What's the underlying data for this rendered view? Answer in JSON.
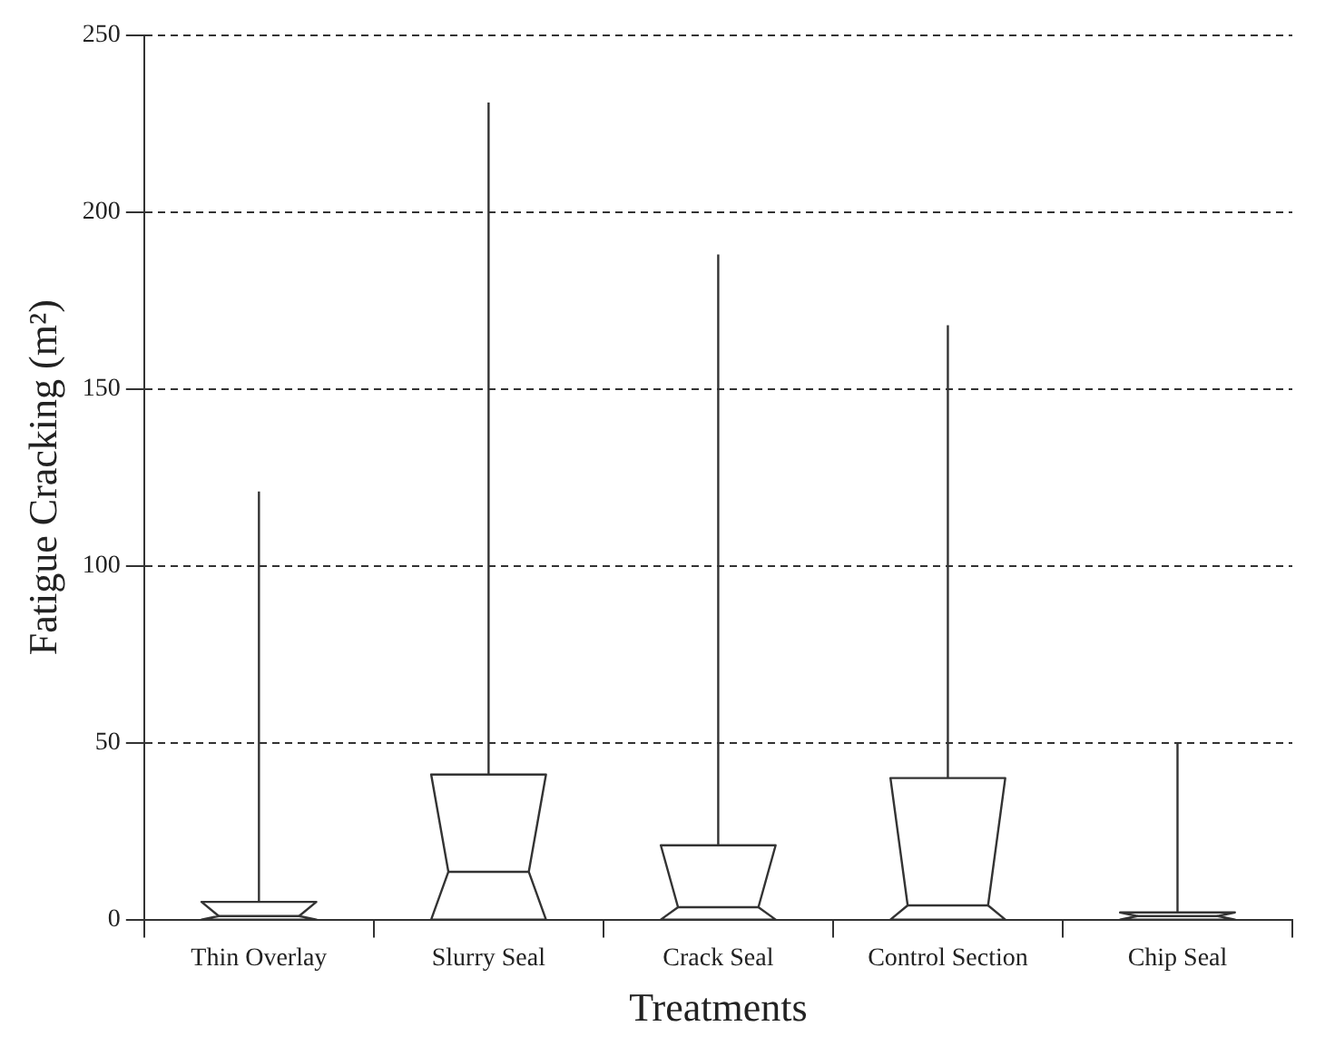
{
  "chart_data": {
    "type": "box",
    "xlabel": "Treatments",
    "ylabel": "Fatigue Cracking (m²)",
    "categories": [
      "Thin Overlay",
      "Slurry Seal",
      "Crack Seal",
      "Control Section",
      "Chip Seal"
    ],
    "boxes": [
      {
        "low": 0,
        "q1": 0,
        "median": 1,
        "q3": 5,
        "high": 121
      },
      {
        "low": 0,
        "q1": 0,
        "median": 13.5,
        "q3": 41,
        "high": 231
      },
      {
        "low": 0,
        "q1": 0,
        "median": 3.5,
        "q3": 21,
        "high": 188
      },
      {
        "low": 0,
        "q1": 0,
        "median": 4,
        "q3": 40,
        "high": 168
      },
      {
        "low": 0,
        "q1": 0,
        "median": 1,
        "q3": 2,
        "high": 50
      }
    ],
    "ylim": [
      0,
      250
    ],
    "yticks": [
      0,
      50,
      100,
      150,
      200,
      250
    ],
    "grid": "y"
  }
}
